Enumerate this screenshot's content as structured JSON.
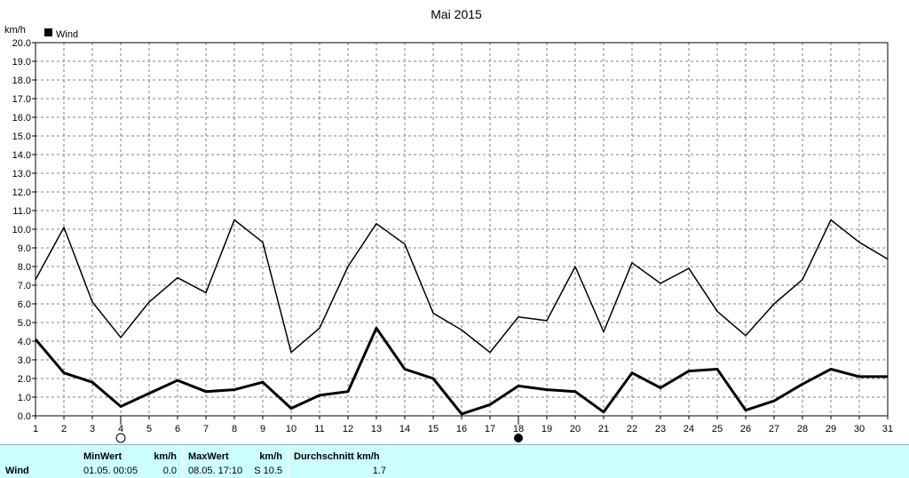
{
  "chart_data": {
    "type": "line",
    "title": "Mai 2015",
    "ylabel": "km/h",
    "legend": {
      "label": "Wind",
      "position": "top-left"
    },
    "ylim": [
      0,
      20
    ],
    "y_ticks": [
      "0.0",
      "1.0",
      "2.0",
      "3.0",
      "4.0",
      "5.0",
      "6.0",
      "7.0",
      "8.0",
      "9.0",
      "10.0",
      "11.0",
      "12.0",
      "13.0",
      "14.0",
      "15.0",
      "16.0",
      "17.0",
      "18.0",
      "19.0",
      "20.0"
    ],
    "x": [
      1,
      2,
      3,
      4,
      5,
      6,
      7,
      8,
      9,
      10,
      11,
      12,
      13,
      14,
      15,
      16,
      17,
      18,
      19,
      20,
      21,
      22,
      23,
      24,
      25,
      26,
      27,
      28,
      29,
      30,
      31
    ],
    "grid": true,
    "series": [
      {
        "values": [
          7.3,
          10.1,
          6.1,
          4.2,
          6.1,
          7.4,
          6.6,
          10.5,
          9.3,
          3.4,
          4.7,
          8.0,
          10.3,
          9.2,
          5.5,
          4.6,
          3.4,
          5.3,
          5.1,
          8.0,
          4.5,
          8.2,
          7.1,
          7.9,
          5.6,
          4.3,
          6.0,
          7.3,
          10.5,
          9.3,
          8.4
        ],
        "color": "#000000"
      },
      {
        "values": [
          4.1,
          2.3,
          1.8,
          0.5,
          1.2,
          1.9,
          1.3,
          1.4,
          1.8,
          0.4,
          1.1,
          1.3,
          4.7,
          2.5,
          2.0,
          0.1,
          0.6,
          1.6,
          1.4,
          1.3,
          0.2,
          2.3,
          1.5,
          2.4,
          2.5,
          0.3,
          0.8,
          1.7,
          2.5,
          2.1,
          2.1
        ],
        "color": "#000000"
      }
    ],
    "markers": [
      {
        "day": 4,
        "symbol": "new-moon-circle"
      },
      {
        "day": 18,
        "symbol": "full-moon-dot"
      }
    ]
  },
  "summary": {
    "row_label": "Wind",
    "min_header": "MinWert",
    "min_unit": "km/h",
    "min_date": "01.05.  00:05",
    "min_value": "0.0",
    "max_header": "MaxWert",
    "max_unit": "km/h",
    "max_date": "08.05.  17:10",
    "max_value": "S 10.5",
    "avg_header": "Durchschnitt km/h",
    "avg_value": "1.7"
  }
}
